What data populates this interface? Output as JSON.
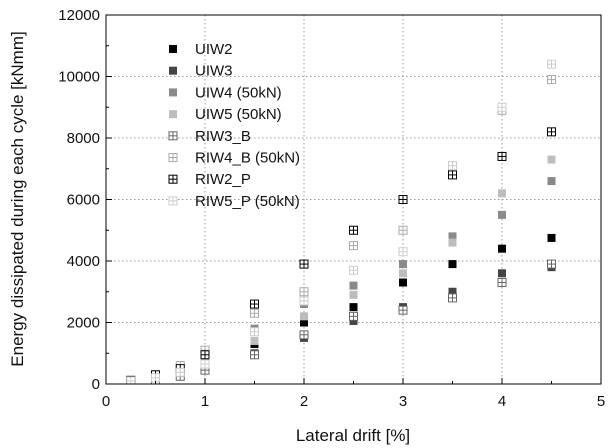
{
  "chart_data": {
    "type": "scatter",
    "xlabel": "Lateral drift [%]",
    "ylabel": "Energy dissipated during each cycle [kNmm]",
    "xlim": [
      0,
      5
    ],
    "ylim": [
      0,
      12000
    ],
    "xticks": [
      "0",
      "1",
      "2",
      "3",
      "4",
      "5"
    ],
    "yticks": [
      "0",
      "2000",
      "4000",
      "6000",
      "8000",
      "10000",
      "12000"
    ],
    "grid": "dotted",
    "legend_position": "top-left",
    "series": [
      {
        "name": "UIW2",
        "marker": "solid",
        "color": "#000000",
        "x": [
          0.25,
          0.5,
          0.75,
          1.0,
          1.5,
          2.0,
          2.5,
          3.0,
          3.5,
          4.0,
          4.5
        ],
        "y": [
          90,
          180,
          350,
          600,
          1300,
          2000,
          2500,
          3300,
          3900,
          4400,
          4750
        ]
      },
      {
        "name": "UIW3",
        "marker": "solid",
        "color": "#444444",
        "x": [
          0.25,
          0.5,
          0.75,
          1.0,
          1.5,
          2.0,
          2.5,
          3.0,
          3.5,
          4.0,
          4.5
        ],
        "y": [
          70,
          140,
          280,
          480,
          1000,
          1500,
          2050,
          2500,
          3000,
          3600,
          3800
        ]
      },
      {
        "name": "UIW4 (50kN)",
        "marker": "solid",
        "color": "#8a8a8a",
        "x": [
          0.25,
          0.5,
          0.75,
          1.0,
          1.5,
          2.0,
          2.5,
          3.0,
          3.5,
          4.0,
          4.5
        ],
        "y": [
          100,
          220,
          450,
          800,
          1800,
          2600,
          3200,
          3900,
          4800,
          5500,
          6600
        ]
      },
      {
        "name": "UIW5 (50kN)",
        "marker": "solid",
        "color": "#bdbdbd",
        "x": [
          0.25,
          0.5,
          0.75,
          1.0,
          1.5,
          2.0,
          2.5,
          3.0,
          3.5,
          4.0,
          4.5
        ],
        "y": [
          80,
          200,
          400,
          700,
          1400,
          2200,
          2900,
          3600,
          4600,
          6200,
          7300
        ]
      },
      {
        "name": "RIW3_B",
        "marker": "hatched",
        "color": "#666666",
        "x": [
          0.25,
          0.5,
          0.75,
          1.0,
          1.5,
          2.0,
          2.5,
          3.0,
          3.5,
          4.0,
          4.5
        ],
        "y": [
          60,
          130,
          250,
          450,
          950,
          1600,
          2200,
          2400,
          2800,
          3300,
          3900
        ]
      },
      {
        "name": "RIW4_B (50kN)",
        "marker": "hatched",
        "color": "#aaaaaa",
        "x": [
          0.25,
          0.5,
          0.75,
          1.0,
          1.5,
          2.0,
          2.5,
          3.0,
          3.5,
          4.0,
          4.5
        ],
        "y": [
          110,
          260,
          600,
          1100,
          2300,
          3000,
          4500,
          5000,
          6900,
          8900,
          9900
        ]
      },
      {
        "name": "RIW2_P",
        "marker": "hatched",
        "color": "#000000",
        "x": [
          0.25,
          0.5,
          0.75,
          1.0,
          1.5,
          2.0,
          2.5,
          3.0,
          3.5,
          4.0,
          4.5
        ],
        "y": [
          120,
          300,
          500,
          950,
          2600,
          3900,
          5000,
          6000,
          6800,
          7400,
          8200
        ]
      },
      {
        "name": "RIW5_P (50kN)",
        "marker": "hatched",
        "color": "#cccccc",
        "x": [
          0.25,
          0.5,
          0.75,
          1.0,
          1.5,
          2.0,
          2.5,
          3.0,
          3.5,
          4.0,
          4.5
        ],
        "y": [
          100,
          200,
          380,
          650,
          1700,
          2700,
          3700,
          4300,
          7100,
          9000,
          10400
        ]
      }
    ]
  }
}
